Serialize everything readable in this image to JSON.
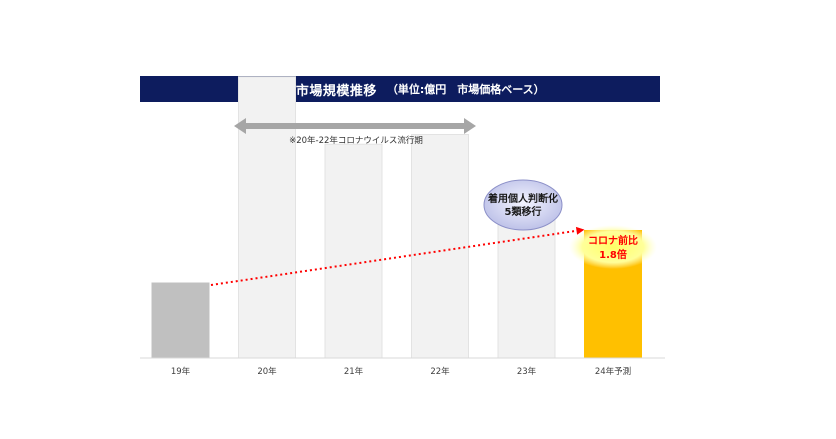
{
  "chart_data": {
    "type": "bar",
    "title": "マスク市場規模推移",
    "subtitle": "（単位:億円　市場価格ベース）",
    "categories": [
      "19年",
      "20年",
      "21年",
      "22年",
      "23年",
      "24年予測"
    ],
    "values": [
      100,
      375,
      285,
      298,
      220,
      170
    ],
    "ylim": [
      0,
      400
    ],
    "xlabel": "",
    "ylabel": "",
    "annotations": {
      "period_note": "※20年-22年コロナウイルス流行期",
      "shift_bubble_line1": "着用個人判断化",
      "shift_bubble_line2": "5類移行",
      "growth_bubble_line1": "コロナ前比",
      "growth_bubble_line2": "1.8倍"
    }
  },
  "colors": {
    "title_bar": "#0d1c5e",
    "bar_base": "#c0c0c0",
    "bar_pandemic": "#f2f2f2",
    "bar_forecast": "#ffc000",
    "arrow": "#a6a6a6",
    "trend": "#ff0000",
    "highlight_text": "#ff0000"
  }
}
